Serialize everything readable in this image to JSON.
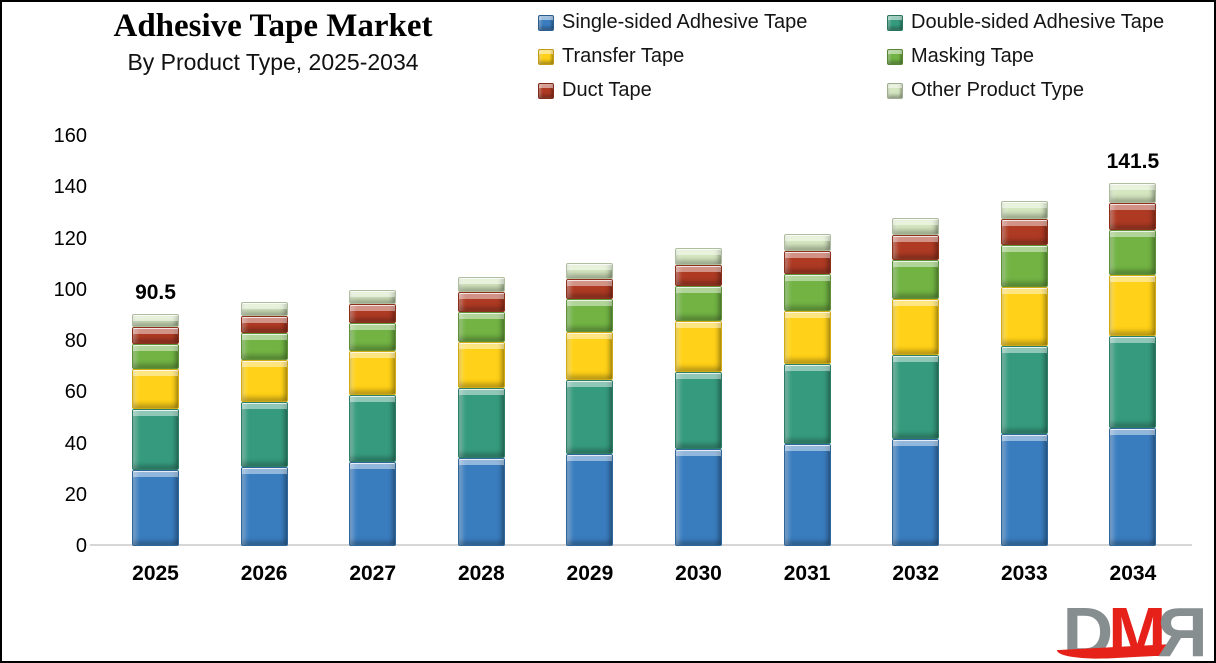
{
  "header": {
    "title": "Adhesive Tape Market",
    "subtitle": "By Product Type, 2025-2034"
  },
  "logo": {
    "d": "D",
    "m": "M",
    "r": "R",
    "gray": "#878e90",
    "red": "#e6211a"
  },
  "chart_data": {
    "type": "bar",
    "stacked": true,
    "title": "Adhesive Tape Market",
    "subtitle": "By Product Type, 2025-2034",
    "xlabel": "",
    "ylabel": "",
    "grid": false,
    "legend_position": "top-right",
    "ylim": [
      0,
      160
    ],
    "yticks": [
      0,
      20,
      40,
      60,
      80,
      100,
      120,
      140,
      160
    ],
    "categories": [
      "2025",
      "2026",
      "2027",
      "2028",
      "2029",
      "2030",
      "2031",
      "2032",
      "2033",
      "2034"
    ],
    "series": [
      {
        "name": "Single-sided Adhesive Tape",
        "color": "#3a7dbf",
        "values": [
          29.5,
          31.0,
          32.6,
          34.2,
          36.0,
          37.8,
          39.7,
          41.7,
          43.8,
          46.0
        ]
      },
      {
        "name": "Double-sided Adhesive Tape",
        "color": "#369b7e",
        "values": [
          24.0,
          25.1,
          26.2,
          27.4,
          28.7,
          30.0,
          31.3,
          32.7,
          34.2,
          35.8
        ]
      },
      {
        "name": "Transfer Tape",
        "color": "#ffd118",
        "values": [
          15.5,
          16.4,
          17.2,
          18.0,
          18.9,
          19.9,
          20.8,
          21.9,
          23.0,
          24.1
        ]
      },
      {
        "name": "Masking Tape",
        "color": "#72b344",
        "values": [
          9.8,
          10.5,
          11.2,
          11.9,
          12.7,
          13.6,
          14.5,
          15.5,
          16.5,
          17.6
        ]
      },
      {
        "name": "Duct Tape",
        "color": "#ae3a23",
        "values": [
          6.5,
          6.9,
          7.2,
          7.6,
          8.0,
          8.5,
          8.9,
          9.4,
          10.0,
          10.5
        ]
      },
      {
        "name": "Other Product Type",
        "color": "#d5e7c0",
        "values": [
          5.2,
          5.4,
          5.6,
          5.9,
          6.1,
          6.4,
          6.6,
          6.9,
          7.2,
          7.5
        ]
      }
    ],
    "total_labels": {
      "2025": "90.5",
      "2034": "141.5"
    }
  }
}
